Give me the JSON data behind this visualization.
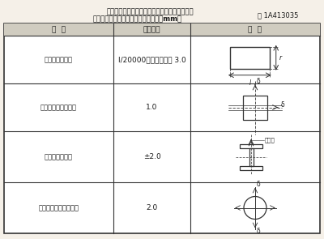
{
  "title_line1": "建筑物定位轴线、基础上柱的定位轴线和标高、",
  "title_line2": "地脚螺栓（锚栓）的允许偏差（单位：mm）",
  "title_code": "表 1A413035",
  "col_headers": [
    "项  目",
    "允许偏差",
    "图  例"
  ],
  "rows": [
    {
      "item": "建筑物定位轴线",
      "tolerance": "l/20000，且不应大于 3.0",
      "figure": "rect_with_dims"
    },
    {
      "item": "基础上柱的定位轴线",
      "tolerance": "1.0",
      "figure": "column_base_axis"
    },
    {
      "item": "基础上柱底标高",
      "tolerance": "±2.0",
      "figure": "column_base_elevation"
    },
    {
      "item": "地脚螺栓（锚栓）位移",
      "tolerance": "2.0",
      "figure": "anchor_bolt"
    }
  ],
  "bg_color": "#f5f0e8",
  "line_color": "#333333",
  "text_color": "#1a1a1a",
  "header_bg": "#d0ccc0"
}
